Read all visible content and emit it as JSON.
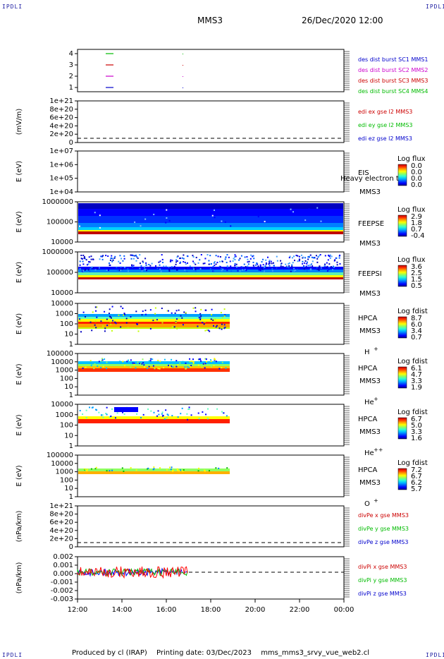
{
  "header": {
    "corner_label": "IPDLI",
    "spacecraft": "MMS3",
    "date": "26/Dec/2020 12:00"
  },
  "footer": {
    "produced_by": "Produced by cl (IRAP)",
    "printing_date": "Printing date: 03/Dec/2023",
    "file": "mms_mms3_srvy_vue_web2.cl"
  },
  "chart_data": [
    {
      "type": "line",
      "id": "burst",
      "yticks": [
        "4",
        "3",
        "2",
        "1"
      ],
      "legend": [
        {
          "text": "des dist burst SC1 MMS1",
          "color": "#0000cc"
        },
        {
          "text": "des dist burst SC2 MMS2",
          "color": "#cc00cc"
        },
        {
          "text": "des dist burst SC3 MMS3",
          "color": "#cc0000"
        },
        {
          "text": "des dist burst SC4 MMS4",
          "color": "#00bb00"
        }
      ]
    },
    {
      "type": "line",
      "id": "edi",
      "ylabel": "(mV/m)",
      "yticks": [
        "1e+21",
        "8e+20",
        "6e+20",
        "4e+20",
        "2e+20",
        "0"
      ],
      "legend": [
        {
          "text": "edi ex gse l2 MMS3",
          "color": "#cc0000"
        },
        {
          "text": "edi ey gse l2 MMS3",
          "color": "#00bb00"
        },
        {
          "text": "edi ez gse l2 MMS3",
          "color": "#0000cc"
        }
      ]
    },
    {
      "type": "heatmap",
      "id": "eis",
      "ylabel": "E (eV)",
      "yticks": [
        "1e+07",
        "1e+06",
        "1e+05",
        "1e+04"
      ],
      "instrument": "EIS",
      "sc": "MMS3",
      "overlay_text": "Heavy electron to",
      "cbar_title": "Log flux",
      "cbar_ticks": [
        "0.0",
        "0.0",
        "0.0",
        "0.0"
      ]
    },
    {
      "type": "heatmap",
      "id": "feepse",
      "ylabel": "E (eV)",
      "yticks": [
        "1000000",
        "100000",
        "10000"
      ],
      "instrument": "FEEPSE",
      "sc": "MMS3",
      "cbar_title": "Log flux",
      "cbar_ticks": [
        "2.9",
        "1.8",
        "0.7",
        "-0.4"
      ]
    },
    {
      "type": "heatmap",
      "id": "feepsi",
      "ylabel": "E (eV)",
      "yticks": [
        "1000000",
        "100000",
        "10000"
      ],
      "instrument": "FEEPSI",
      "sc": "MMS3",
      "cbar_title": "Log flux",
      "cbar_ticks": [
        "3.6",
        "2.5",
        "1.5",
        "0.5"
      ]
    },
    {
      "type": "heatmap",
      "id": "hpca_h",
      "ylabel": "E (eV)",
      "yticks": [
        "10000",
        "1000",
        "100",
        "10",
        "1"
      ],
      "instrument": "HPCA",
      "sc": "MMS3",
      "species": "H",
      "species_sup": "+",
      "cbar_title": "Log fdist",
      "cbar_ticks": [
        "8.7",
        "6.0",
        "3.4",
        "0.7"
      ]
    },
    {
      "type": "heatmap",
      "id": "hpca_he",
      "ylabel": "E (eV)",
      "yticks": [
        "100000",
        "10000",
        "1000",
        "100",
        "10",
        "1"
      ],
      "instrument": "HPCA",
      "sc": "MMS3",
      "species": "He",
      "species_sup": "+",
      "cbar_title": "Log fdist",
      "cbar_ticks": [
        "6.1",
        "4.7",
        "3.3",
        "1.9"
      ]
    },
    {
      "type": "heatmap",
      "id": "hpca_hepp",
      "ylabel": "E (eV)",
      "yticks": [
        "10000",
        "1000",
        "100",
        "10",
        "1"
      ],
      "instrument": "HPCA",
      "sc": "MMS3",
      "species": "He",
      "species_sup": "++",
      "cbar_title": "Log fdist",
      "cbar_ticks": [
        "6.7",
        "5.0",
        "3.3",
        "1.6"
      ]
    },
    {
      "type": "heatmap",
      "id": "hpca_o",
      "ylabel": "E (eV)",
      "yticks": [
        "100000",
        "10000",
        "1000",
        "100",
        "10",
        "1"
      ],
      "instrument": "HPCA",
      "sc": "MMS3",
      "species": "O",
      "species_sup": "+",
      "cbar_title": "Log fdist",
      "cbar_ticks": [
        "7.2",
        "6.7",
        "6.2",
        "5.7"
      ]
    },
    {
      "type": "line",
      "id": "divpe",
      "ylabel": "(nPa/km)",
      "yticks": [
        "1e+21",
        "8e+20",
        "6e+20",
        "4e+20",
        "2e+20",
        "0"
      ],
      "legend": [
        {
          "text": "divPe x gse MMS3",
          "color": "#cc0000"
        },
        {
          "text": "divPe y gse MMS3",
          "color": "#00bb00"
        },
        {
          "text": "divPe z gse MMS3",
          "color": "#0000cc"
        }
      ]
    },
    {
      "type": "line",
      "id": "divpi",
      "ylabel": "(nPa/km)",
      "yticks": [
        "0.002",
        "0.001",
        "0.000",
        "-0.001",
        "-0.002",
        "-0.003"
      ],
      "legend": [
        {
          "text": "divPi x gse MMS3",
          "color": "#cc0000"
        },
        {
          "text": "divPi y gse MMS3",
          "color": "#00bb00"
        },
        {
          "text": "divPi z gse MMS3",
          "color": "#0000cc"
        }
      ]
    }
  ],
  "time_axis": [
    "12:00",
    "14:00",
    "16:00",
    "18:00",
    "20:00",
    "22:00",
    "00:00"
  ]
}
